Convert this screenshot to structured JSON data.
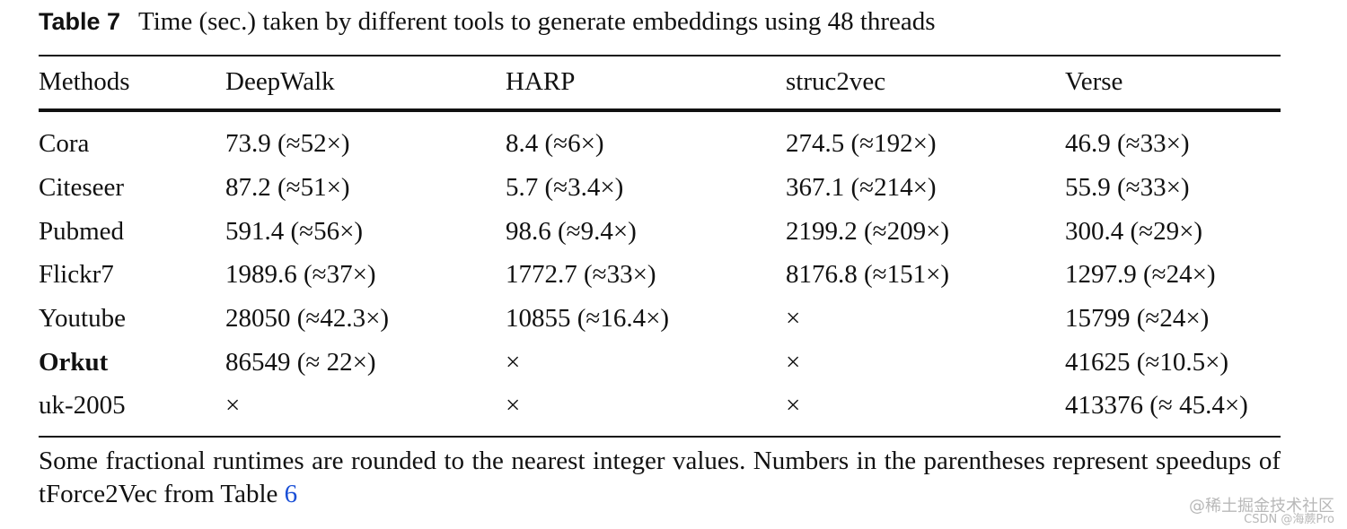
{
  "caption": {
    "label": "Table 7",
    "text": "Time (sec.) taken by different tools to generate embeddings using 48 threads"
  },
  "table": {
    "headers": [
      "Methods",
      "DeepWalk",
      "HARP",
      "struc2vec",
      "Verse"
    ],
    "rows": [
      [
        "Cora",
        "73.9 (≈52×)",
        "8.4 (≈6×)",
        "274.5 (≈192×)",
        "46.9 (≈33×)"
      ],
      [
        "Citeseer",
        "87.2 (≈51×)",
        "5.7 (≈3.4×)",
        "367.1 (≈214×)",
        "55.9 (≈33×)"
      ],
      [
        "Pubmed",
        "591.4 (≈56×)",
        "98.6 (≈9.4×)",
        "2199.2 (≈209×)",
        "300.4 (≈29×)"
      ],
      [
        "Flickr7",
        "1989.6 (≈37×)",
        "1772.7 (≈33×)",
        "8176.8 (≈151×)",
        "1297.9 (≈24×)"
      ],
      [
        "Youtube",
        "28050 (≈42.3×)",
        "10855 (≈16.4×)",
        "×",
        "15799 (≈24×)"
      ],
      [
        "Orkut",
        "86549 (≈ 22×)",
        "×",
        "×",
        "41625 (≈10.5×)"
      ],
      [
        "uk-2005",
        "×",
        "×",
        "×",
        "413376 (≈ 45.4×)"
      ]
    ]
  },
  "footnote": {
    "text": "Some fractional runtimes are rounded to the nearest integer values. Numbers in the parentheses represent speedups of tForce2Vec from Table ",
    "link": "6"
  },
  "watermark": {
    "line1": "@稀土掘金技术社区",
    "line2": "CSDN @海蕨Pro"
  }
}
